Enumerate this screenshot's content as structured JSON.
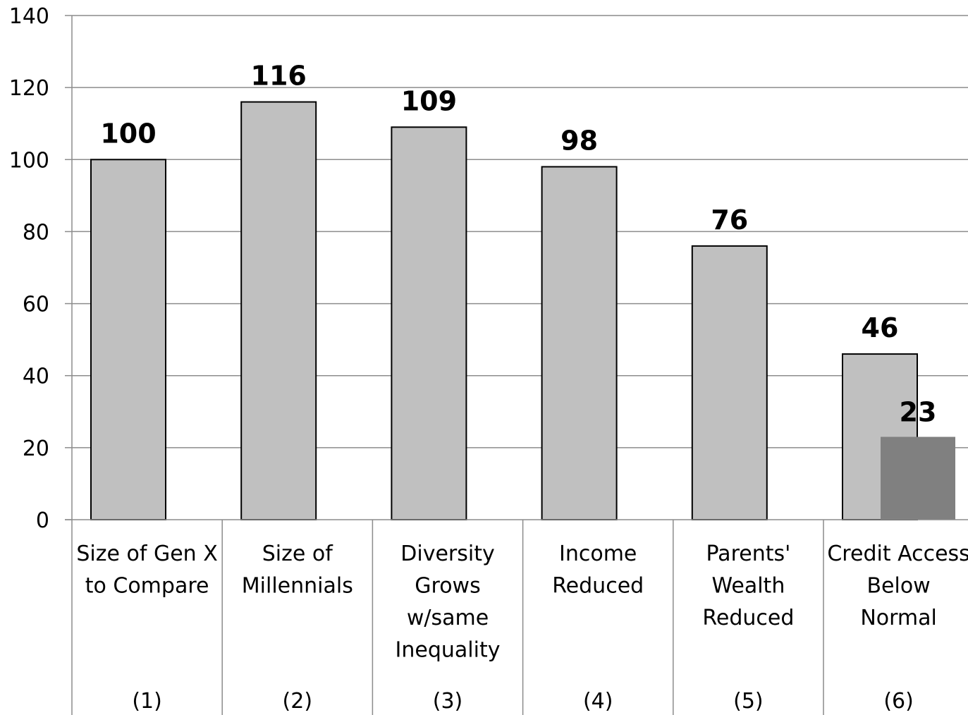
{
  "chart_data": {
    "type": "bar",
    "title": "",
    "xlabel": "",
    "ylabel": "",
    "ylim": [
      0,
      140
    ],
    "yticks": [
      0,
      20,
      40,
      60,
      80,
      100,
      120,
      140
    ],
    "grid": true,
    "categories": [
      {
        "lines": [
          "Size of Gen X",
          "to Compare"
        ],
        "number": "(1)"
      },
      {
        "lines": [
          "Size of",
          "Millennials"
        ],
        "number": "(2)"
      },
      {
        "lines": [
          "Diversity",
          "Grows",
          "w/same",
          "Inequality"
        ],
        "number": "(3)"
      },
      {
        "lines": [
          "Income",
          "Reduced"
        ],
        "number": "(4)"
      },
      {
        "lines": [
          "Parents'",
          "Wealth",
          "Reduced"
        ],
        "number": "(5)"
      },
      {
        "lines": [
          "Credit Access",
          "Below",
          "Normal"
        ],
        "number": "(6)"
      }
    ],
    "series": [
      {
        "values": [
          100,
          116,
          109,
          98,
          76,
          46
        ],
        "color": "#c0c0c0",
        "stroke": "#000000"
      },
      {
        "values": [
          null,
          null,
          null,
          null,
          null,
          23
        ],
        "color": "#808080"
      }
    ],
    "data_labels": [
      [
        "100",
        "116",
        "109",
        "98",
        "76",
        "46"
      ],
      [
        null,
        null,
        null,
        null,
        null,
        "23"
      ]
    ]
  }
}
